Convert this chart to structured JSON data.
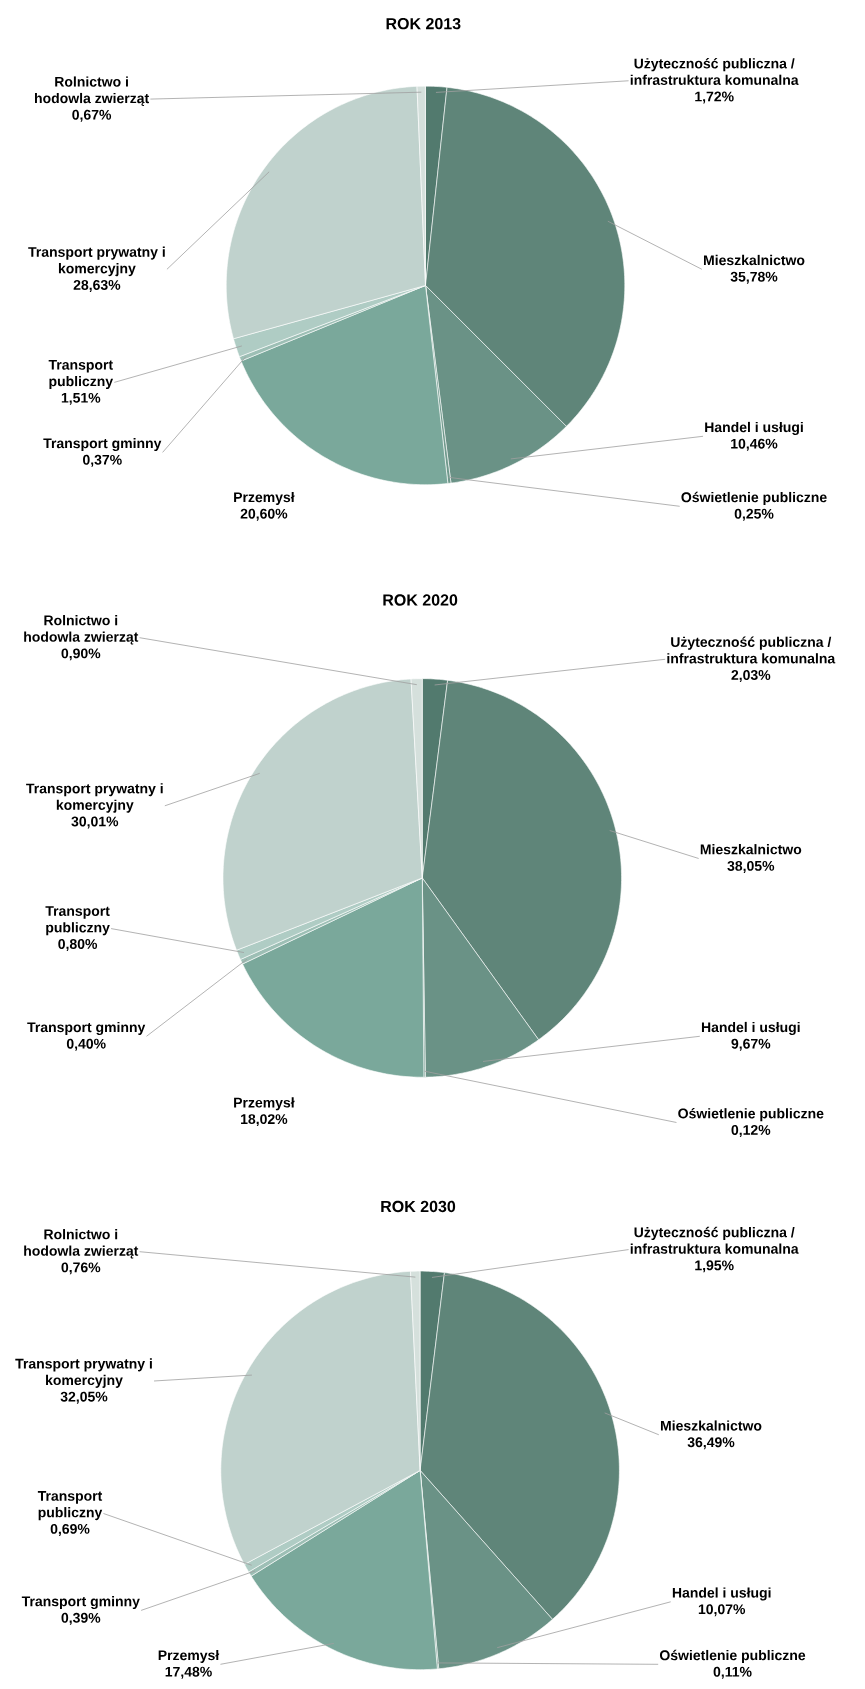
{
  "chart_data": [
    {
      "type": "pie",
      "title": "ROK 2013",
      "categories": [
        "Użyteczność publiczna / infrastruktura komunalna",
        "Mieszkalnictwo",
        "Handel i usługi",
        "Oświetlenie publiczne",
        "Przemysł",
        "Transport gminny",
        "Transport publiczny",
        "Transport prywatny i komercyjny",
        "Rolnictwo i hodowla zwierząt"
      ],
      "values": [
        1.72,
        35.78,
        10.46,
        0.25,
        20.6,
        0.37,
        1.51,
        28.63,
        0.67
      ],
      "value_labels": [
        "1,72%",
        "35,78%",
        "10,46%",
        "0,25%",
        "20,60%",
        "0,37%",
        "1,51%",
        "28,63%",
        "0,67%"
      ],
      "colors": [
        "#527a6e",
        "#5f8579",
        "#6a9286",
        "#70998c",
        "#7aa89b",
        "#9dbfb5",
        "#afccc4",
        "#c0d2cd",
        "#d5e0dc"
      ]
    },
    {
      "type": "pie",
      "title": "ROK 2020",
      "categories": [
        "Użyteczność publiczna / infrastruktura komunalna",
        "Mieszkalnictwo",
        "Handel i usługi",
        "Oświetlenie publiczne",
        "Przemysł",
        "Transport gminny",
        "Transport publiczny",
        "Transport prywatny i komercyjny",
        "Rolnictwo i hodowla zwierząt"
      ],
      "values": [
        2.03,
        38.05,
        9.67,
        0.12,
        18.02,
        0.4,
        0.8,
        30.01,
        0.9
      ],
      "value_labels": [
        "2,03%",
        "38,05%",
        "9,67%",
        "0,12%",
        "18,02%",
        "0,40%",
        "0,80%",
        "30,01%",
        "0,90%"
      ],
      "colors": [
        "#527a6e",
        "#5f8579",
        "#6a9286",
        "#70998c",
        "#7aa89b",
        "#9dbfb5",
        "#afccc4",
        "#c0d2cd",
        "#d5e0dc"
      ]
    },
    {
      "type": "pie",
      "title": "ROK 2030",
      "categories": [
        "Użyteczność publiczna / infrastruktura komunalna",
        "Mieszkalnictwo",
        "Handel i usługi",
        "Oświetlenie publiczne",
        "Przemysł",
        "Transport gminny",
        "Transport publiczny",
        "Transport prywatny i komercyjny",
        "Rolnictwo i hodowla zwierząt"
      ],
      "values": [
        1.95,
        36.49,
        10.07,
        0.11,
        17.48,
        0.39,
        0.69,
        32.05,
        0.76
      ],
      "value_labels": [
        "1,95%",
        "36,49%",
        "10,07%",
        "0,11%",
        "17,48%",
        "0,39%",
        "0,69%",
        "32,05%",
        "0,76%"
      ],
      "colors": [
        "#527a6e",
        "#5f8579",
        "#6a9286",
        "#70998c",
        "#7aa89b",
        "#9dbfb5",
        "#afccc4",
        "#c0d2cd",
        "#d5e0dc"
      ]
    }
  ]
}
